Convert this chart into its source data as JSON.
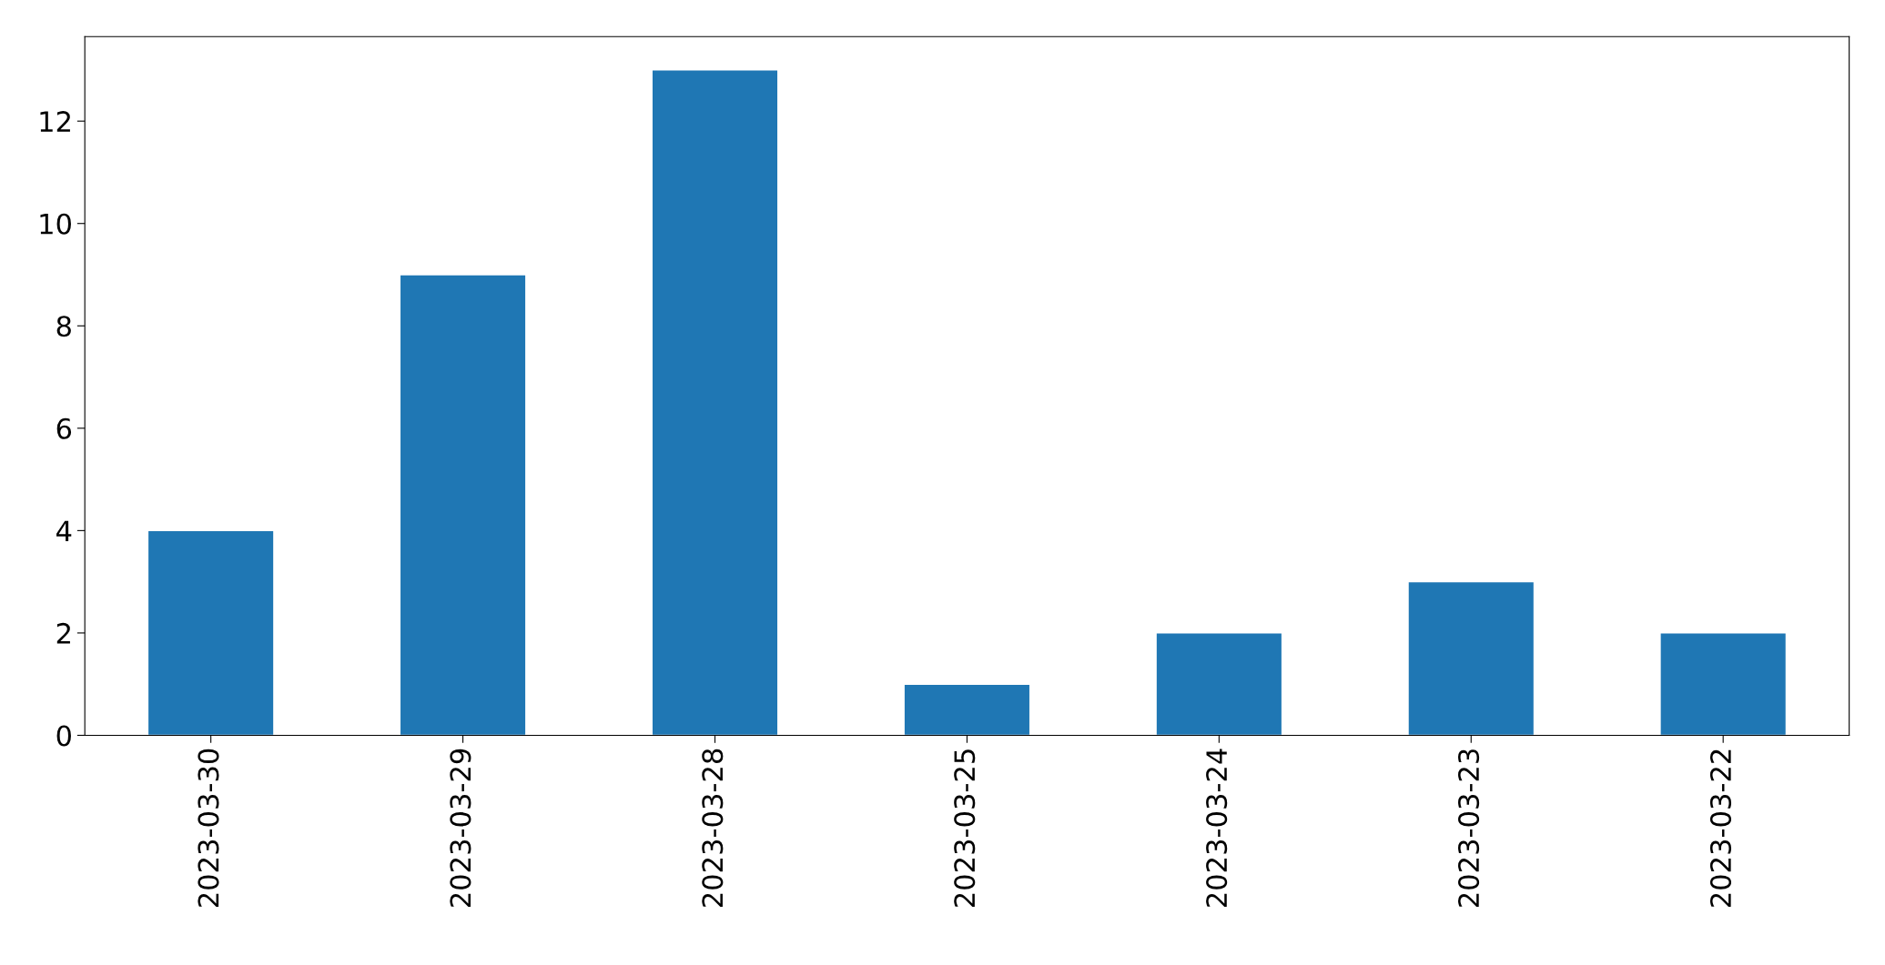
{
  "chart_data": {
    "type": "bar",
    "categories": [
      "2023-03-30",
      "2023-03-29",
      "2023-03-28",
      "2023-03-25",
      "2023-03-24",
      "2023-03-23",
      "2023-03-22"
    ],
    "values": [
      4,
      9,
      13,
      1,
      2,
      3,
      2
    ],
    "color": "#1f77b4",
    "ylim": [
      0,
      13.65
    ],
    "yticks": [
      0,
      2,
      4,
      6,
      8,
      10,
      12
    ],
    "grid": false,
    "legend": false
  }
}
